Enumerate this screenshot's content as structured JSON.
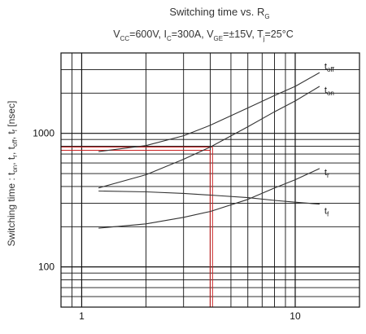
{
  "chart_data": {
    "type": "line",
    "title": "Switching time vs. R",
    "title_sub": "G",
    "conditions": {
      "vcc": {
        "main": "V",
        "sub": "CC",
        "rest": "=600V, "
      },
      "ic": {
        "main": "I",
        "sub": "C",
        "rest": "=300A, "
      },
      "vge": {
        "main": "V",
        "sub": "GE",
        "rest": "=±15V, "
      },
      "tj": {
        "main": "T",
        "sub": "j",
        "rest": "=25°C"
      }
    },
    "ylabel": {
      "prefix": "Switching time : t",
      "s1": "on",
      "m1": ", t",
      "s2": "r",
      "m2": ", t",
      "s3": "off",
      "m3": ", t",
      "s4": "f",
      "suffix": " [nsec]"
    },
    "xlabel": "",
    "x_scale": "log",
    "y_scale": "log",
    "xlim": [
      0.8,
      20
    ],
    "ylim": [
      50,
      4000
    ],
    "x_ticks": [
      {
        "value": 1,
        "label": "1"
      },
      {
        "value": 10,
        "label": "10"
      }
    ],
    "y_ticks": [
      {
        "value": 100,
        "label": "100"
      },
      {
        "value": 1000,
        "label": "1000"
      }
    ],
    "grid": true,
    "series": [
      {
        "name": "off",
        "label_main": "t",
        "label_sub": "off",
        "color": "#333333",
        "x": [
          1.2,
          2,
          3,
          4,
          6,
          8,
          10,
          13
        ],
        "y": [
          730,
          810,
          960,
          1150,
          1550,
          1920,
          2250,
          2850
        ]
      },
      {
        "name": "on",
        "label_main": "t",
        "label_sub": "on",
        "color": "#333333",
        "x": [
          1.2,
          2,
          3,
          4,
          6,
          8,
          10,
          13
        ],
        "y": [
          390,
          490,
          640,
          790,
          1120,
          1450,
          1750,
          2250
        ]
      },
      {
        "name": "r",
        "label_main": "t",
        "label_sub": "r",
        "color": "#333333",
        "x": [
          1.2,
          2,
          3,
          4,
          6,
          8,
          10,
          13
        ],
        "y": [
          195,
          210,
          235,
          260,
          320,
          390,
          450,
          545
        ]
      },
      {
        "name": "f",
        "label_main": "t",
        "label_sub": "f",
        "color": "#333333",
        "x": [
          1.2,
          2,
          3,
          4,
          6,
          8,
          10,
          13
        ],
        "y": [
          370,
          365,
          355,
          345,
          330,
          315,
          305,
          295
        ]
      }
    ],
    "annotation": {
      "color": "#cc2222",
      "x": 4.1,
      "y": 790
    }
  }
}
